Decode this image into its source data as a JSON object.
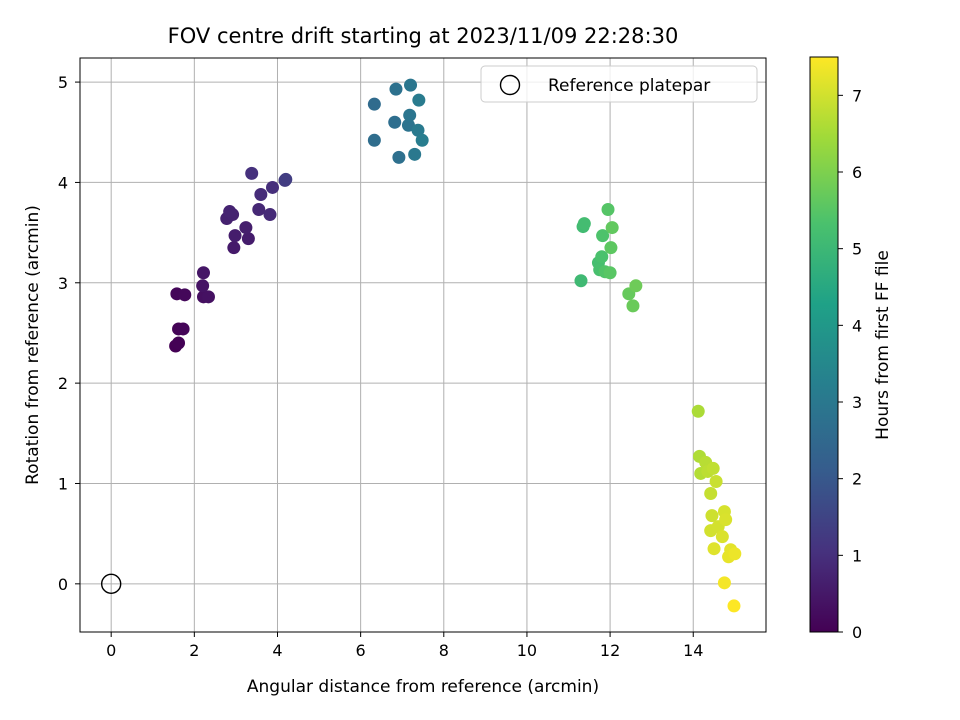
{
  "chart_data": {
    "type": "scatter",
    "title": "FOV centre drift starting at 2023/11/09 22:28:30",
    "xlabel": "Angular distance from reference (arcmin)",
    "ylabel": "Rotation from reference (arcmin)",
    "xlim": [
      -0.75,
      15.75
    ],
    "ylim": [
      -0.48,
      5.24
    ],
    "x_ticks": [
      0,
      2,
      4,
      6,
      8,
      10,
      12,
      14
    ],
    "y_ticks": [
      0,
      1,
      2,
      3,
      4,
      5
    ],
    "grid": true,
    "legend": {
      "placement": "top-right",
      "entries": [
        "Reference platepar"
      ]
    },
    "reference_point": {
      "x": 0,
      "y": 0,
      "marker": "open-circle"
    },
    "colorbar": {
      "label": "Hours from first FF file",
      "range": [
        0,
        7.5
      ],
      "ticks": [
        0,
        1,
        2,
        3,
        4,
        5,
        6,
        7
      ],
      "colormap": "viridis"
    },
    "points": [
      {
        "x": 1.55,
        "y": 2.37,
        "t": 0.0
      },
      {
        "x": 1.62,
        "y": 2.4,
        "t": 0.03
      },
      {
        "x": 1.62,
        "y": 2.54,
        "t": 0.06
      },
      {
        "x": 1.73,
        "y": 2.54,
        "t": 0.09
      },
      {
        "x": 1.58,
        "y": 2.89,
        "t": 0.12
      },
      {
        "x": 1.77,
        "y": 2.88,
        "t": 0.15
      },
      {
        "x": 2.22,
        "y": 2.86,
        "t": 0.3
      },
      {
        "x": 2.34,
        "y": 2.86,
        "t": 0.35
      },
      {
        "x": 2.2,
        "y": 2.97,
        "t": 0.4
      },
      {
        "x": 2.22,
        "y": 3.1,
        "t": 0.45
      },
      {
        "x": 2.95,
        "y": 3.35,
        "t": 0.55
      },
      {
        "x": 3.3,
        "y": 3.44,
        "t": 0.6
      },
      {
        "x": 2.98,
        "y": 3.47,
        "t": 0.62
      },
      {
        "x": 3.24,
        "y": 3.55,
        "t": 0.65
      },
      {
        "x": 2.78,
        "y": 3.64,
        "t": 0.7
      },
      {
        "x": 2.92,
        "y": 3.68,
        "t": 0.72
      },
      {
        "x": 2.85,
        "y": 3.71,
        "t": 0.75
      },
      {
        "x": 3.55,
        "y": 3.73,
        "t": 0.85
      },
      {
        "x": 3.82,
        "y": 3.68,
        "t": 0.9
      },
      {
        "x": 3.6,
        "y": 3.88,
        "t": 0.95
      },
      {
        "x": 3.88,
        "y": 3.95,
        "t": 1.0
      },
      {
        "x": 3.38,
        "y": 4.09,
        "t": 1.05
      },
      {
        "x": 4.18,
        "y": 4.02,
        "t": 1.3
      },
      {
        "x": 4.2,
        "y": 4.03,
        "t": 1.35
      },
      {
        "x": 6.33,
        "y": 4.78,
        "t": 2.6
      },
      {
        "x": 6.33,
        "y": 4.42,
        "t": 2.65
      },
      {
        "x": 6.82,
        "y": 4.6,
        "t": 2.7
      },
      {
        "x": 6.92,
        "y": 4.25,
        "t": 2.75
      },
      {
        "x": 6.85,
        "y": 4.93,
        "t": 2.8
      },
      {
        "x": 7.15,
        "y": 4.57,
        "t": 2.85
      },
      {
        "x": 7.18,
        "y": 4.67,
        "t": 2.9
      },
      {
        "x": 7.2,
        "y": 4.97,
        "t": 2.95
      },
      {
        "x": 7.3,
        "y": 4.28,
        "t": 3.0
      },
      {
        "x": 7.38,
        "y": 4.52,
        "t": 3.05
      },
      {
        "x": 7.4,
        "y": 4.82,
        "t": 3.1
      },
      {
        "x": 7.48,
        "y": 4.42,
        "t": 3.15
      },
      {
        "x": 11.3,
        "y": 3.02,
        "t": 5.1
      },
      {
        "x": 11.35,
        "y": 3.56,
        "t": 5.15
      },
      {
        "x": 11.38,
        "y": 3.59,
        "t": 5.2
      },
      {
        "x": 11.72,
        "y": 3.2,
        "t": 5.25
      },
      {
        "x": 11.75,
        "y": 3.13,
        "t": 5.3
      },
      {
        "x": 11.8,
        "y": 3.26,
        "t": 5.35
      },
      {
        "x": 11.82,
        "y": 3.47,
        "t": 5.4
      },
      {
        "x": 11.88,
        "y": 3.11,
        "t": 5.45
      },
      {
        "x": 11.95,
        "y": 3.73,
        "t": 5.5
      },
      {
        "x": 12.0,
        "y": 3.1,
        "t": 5.55
      },
      {
        "x": 12.02,
        "y": 3.35,
        "t": 5.6
      },
      {
        "x": 12.05,
        "y": 3.55,
        "t": 5.65
      },
      {
        "x": 12.45,
        "y": 2.89,
        "t": 5.7
      },
      {
        "x": 12.55,
        "y": 2.77,
        "t": 5.75
      },
      {
        "x": 12.62,
        "y": 2.97,
        "t": 5.8
      },
      {
        "x": 14.12,
        "y": 1.72,
        "t": 6.55
      },
      {
        "x": 14.15,
        "y": 1.27,
        "t": 6.6
      },
      {
        "x": 14.18,
        "y": 1.1,
        "t": 6.65
      },
      {
        "x": 14.3,
        "y": 1.21,
        "t": 6.7
      },
      {
        "x": 14.35,
        "y": 1.12,
        "t": 6.75
      },
      {
        "x": 14.48,
        "y": 1.15,
        "t": 6.8
      },
      {
        "x": 14.42,
        "y": 0.9,
        "t": 6.85
      },
      {
        "x": 14.55,
        "y": 1.02,
        "t": 6.9
      },
      {
        "x": 14.45,
        "y": 0.68,
        "t": 6.95
      },
      {
        "x": 14.42,
        "y": 0.53,
        "t": 7.0
      },
      {
        "x": 14.6,
        "y": 0.57,
        "t": 7.02
      },
      {
        "x": 14.75,
        "y": 0.72,
        "t": 7.05
      },
      {
        "x": 14.78,
        "y": 0.64,
        "t": 7.08
      },
      {
        "x": 14.7,
        "y": 0.47,
        "t": 7.1
      },
      {
        "x": 14.5,
        "y": 0.35,
        "t": 7.15
      },
      {
        "x": 14.9,
        "y": 0.34,
        "t": 7.2
      },
      {
        "x": 14.85,
        "y": 0.27,
        "t": 7.25
      },
      {
        "x": 15.0,
        "y": 0.3,
        "t": 7.3
      },
      {
        "x": 14.75,
        "y": 0.01,
        "t": 7.4
      },
      {
        "x": 14.98,
        "y": -0.22,
        "t": 7.5
      }
    ]
  }
}
